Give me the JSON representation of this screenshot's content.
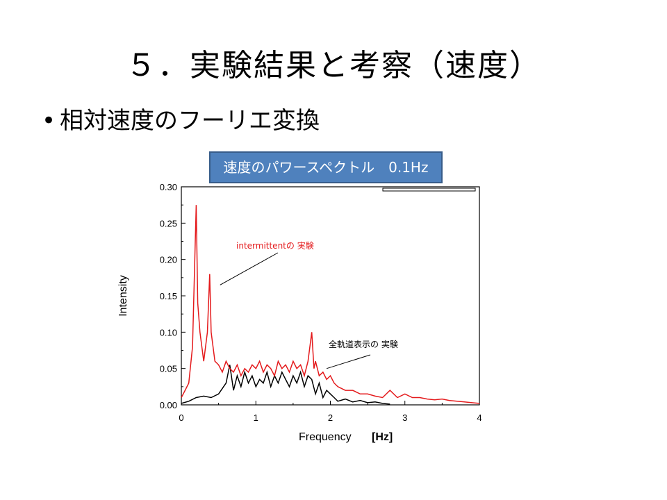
{
  "slide": {
    "title": "５．実験結果と考察（速度）",
    "bullet": "相対速度のフーリエ変換",
    "box_label": "速度のパワースペクトル　0.1Hz"
  },
  "chart_data": {
    "type": "line",
    "xlabel": "Frequency",
    "xlabel_unit": "[Hz]",
    "ylabel": "Intensity",
    "xlim": [
      0,
      4
    ],
    "ylim": [
      0,
      0.3
    ],
    "xticks": [
      0,
      1,
      2,
      3,
      4
    ],
    "yticks": [
      "0.00",
      "0.05",
      "0.10",
      "0.15",
      "0.20",
      "0.25",
      "0.30"
    ],
    "grid": false,
    "series": [
      {
        "name": "intermittentの 実験",
        "color": "#e41a1c",
        "x": [
          0,
          0.05,
          0.1,
          0.15,
          0.2,
          0.22,
          0.25,
          0.3,
          0.35,
          0.38,
          0.4,
          0.45,
          0.5,
          0.55,
          0.6,
          0.65,
          0.7,
          0.75,
          0.8,
          0.85,
          0.9,
          0.95,
          1.0,
          1.05,
          1.1,
          1.15,
          1.2,
          1.25,
          1.3,
          1.35,
          1.4,
          1.45,
          1.5,
          1.55,
          1.6,
          1.65,
          1.7,
          1.75,
          1.78,
          1.8,
          1.85,
          1.9,
          1.95,
          2.0,
          2.05,
          2.1,
          2.2,
          2.3,
          2.4,
          2.5,
          2.6,
          2.7,
          2.8,
          2.9,
          3.0,
          3.1,
          3.2,
          3.3,
          3.4,
          3.5,
          3.6,
          3.7,
          3.8,
          3.9,
          4.0
        ],
        "values": [
          0.01,
          0.02,
          0.03,
          0.08,
          0.275,
          0.14,
          0.1,
          0.06,
          0.1,
          0.18,
          0.1,
          0.06,
          0.055,
          0.045,
          0.06,
          0.05,
          0.045,
          0.055,
          0.04,
          0.05,
          0.045,
          0.055,
          0.05,
          0.06,
          0.045,
          0.055,
          0.05,
          0.04,
          0.06,
          0.05,
          0.055,
          0.045,
          0.06,
          0.05,
          0.055,
          0.04,
          0.06,
          0.1,
          0.05,
          0.06,
          0.04,
          0.045,
          0.035,
          0.04,
          0.03,
          0.025,
          0.02,
          0.02,
          0.015,
          0.015,
          0.012,
          0.01,
          0.02,
          0.01,
          0.015,
          0.01,
          0.01,
          0.008,
          0.007,
          0.008,
          0.006,
          0.005,
          0.004,
          0.003,
          0.002
        ]
      },
      {
        "name": "全軌道表示の 実験",
        "color": "#000000",
        "x": [
          0,
          0.1,
          0.2,
          0.3,
          0.4,
          0.5,
          0.6,
          0.65,
          0.7,
          0.75,
          0.8,
          0.85,
          0.9,
          0.95,
          1.0,
          1.05,
          1.1,
          1.15,
          1.2,
          1.25,
          1.3,
          1.35,
          1.4,
          1.45,
          1.5,
          1.55,
          1.6,
          1.65,
          1.7,
          1.75,
          1.8,
          1.85,
          1.9,
          1.95,
          2.0,
          2.05,
          2.1,
          2.2,
          2.3,
          2.4,
          2.5,
          2.6,
          2.7,
          2.8
        ],
        "values": [
          0.002,
          0.005,
          0.01,
          0.012,
          0.01,
          0.015,
          0.03,
          0.055,
          0.02,
          0.04,
          0.025,
          0.045,
          0.03,
          0.04,
          0.025,
          0.035,
          0.03,
          0.045,
          0.025,
          0.04,
          0.03,
          0.045,
          0.035,
          0.025,
          0.04,
          0.03,
          0.045,
          0.025,
          0.04,
          0.035,
          0.015,
          0.03,
          0.01,
          0.02,
          0.015,
          0.01,
          0.005,
          0.008,
          0.004,
          0.006,
          0.003,
          0.004,
          0.002,
          0.001
        ]
      }
    ],
    "annotations": [
      {
        "text": "intermittentの 実験",
        "color": "#e41a1c",
        "target_x": 0.52,
        "target_y": 0.165
      },
      {
        "text": "全軌道表示の 実験",
        "color": "#000000",
        "target_x": 1.95,
        "target_y": 0.05
      }
    ]
  }
}
